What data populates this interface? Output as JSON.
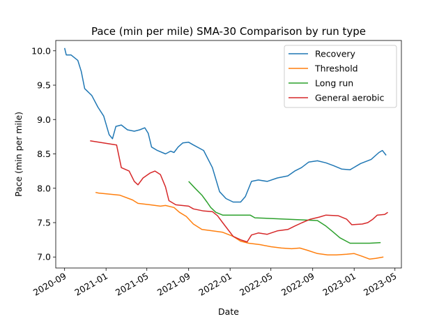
{
  "chart_data": {
    "type": "line",
    "title": "Pace (min per mile) SMA-30 Comparison by run type",
    "xlabel": "Date",
    "ylabel": "Pace (min per mile)",
    "xlim": [
      "2020-08-06",
      "2023-05-20"
    ],
    "ylim": [
      6.84,
      10.15
    ],
    "x_ticks": [
      "2020-09",
      "2021-01",
      "2021-05",
      "2021-09",
      "2022-01",
      "2022-05",
      "2022-09",
      "2023-01",
      "2023-05"
    ],
    "y_ticks": [
      "7.0",
      "7.5",
      "8.0",
      "8.5",
      "9.0",
      "9.5",
      "10.0"
    ],
    "grid": false,
    "legend": "top-right",
    "series": [
      {
        "name": "Recovery",
        "color": "#1f77b4",
        "points": [
          [
            "2020-09-01",
            10.04
          ],
          [
            "2020-09-06",
            9.94
          ],
          [
            "2020-09-20",
            9.94
          ],
          [
            "2020-10-10",
            9.86
          ],
          [
            "2020-10-20",
            9.7
          ],
          [
            "2020-10-30",
            9.45
          ],
          [
            "2020-11-20",
            9.35
          ],
          [
            "2020-12-08",
            9.18
          ],
          [
            "2020-12-25",
            9.05
          ],
          [
            "2021-01-10",
            8.78
          ],
          [
            "2021-01-20",
            8.72
          ],
          [
            "2021-01-30",
            8.9
          ],
          [
            "2021-02-15",
            8.92
          ],
          [
            "2021-03-05",
            8.85
          ],
          [
            "2021-03-25",
            8.83
          ],
          [
            "2021-04-10",
            8.85
          ],
          [
            "2021-04-25",
            8.88
          ],
          [
            "2021-05-05",
            8.8
          ],
          [
            "2021-05-15",
            8.6
          ],
          [
            "2021-06-01",
            8.55
          ],
          [
            "2021-06-25",
            8.5
          ],
          [
            "2021-07-10",
            8.54
          ],
          [
            "2021-07-20",
            8.52
          ],
          [
            "2021-08-01",
            8.6
          ],
          [
            "2021-08-15",
            8.66
          ],
          [
            "2021-09-01",
            8.67
          ],
          [
            "2021-09-15",
            8.63
          ],
          [
            "2021-10-15",
            8.55
          ],
          [
            "2021-11-10",
            8.3
          ],
          [
            "2021-12-01",
            7.95
          ],
          [
            "2021-12-20",
            7.85
          ],
          [
            "2022-01-10",
            7.8
          ],
          [
            "2022-02-01",
            7.8
          ],
          [
            "2022-02-15",
            7.88
          ],
          [
            "2022-03-05",
            8.1
          ],
          [
            "2022-03-25",
            8.12
          ],
          [
            "2022-04-20",
            8.1
          ],
          [
            "2022-05-20",
            8.15
          ],
          [
            "2022-06-20",
            8.18
          ],
          [
            "2022-07-10",
            8.25
          ],
          [
            "2022-07-30",
            8.3
          ],
          [
            "2022-08-20",
            8.38
          ],
          [
            "2022-09-15",
            8.4
          ],
          [
            "2022-10-10",
            8.37
          ],
          [
            "2022-11-01",
            8.33
          ],
          [
            "2022-11-25",
            8.28
          ],
          [
            "2022-12-20",
            8.27
          ],
          [
            "2023-01-20",
            8.36
          ],
          [
            "2023-02-20",
            8.42
          ],
          [
            "2023-03-15",
            8.52
          ],
          [
            "2023-03-25",
            8.55
          ],
          [
            "2023-04-05",
            8.48
          ]
        ]
      },
      {
        "name": "Threshold",
        "color": "#ff7f0e",
        "points": [
          [
            "2020-12-01",
            7.94
          ],
          [
            "2020-12-10",
            7.93
          ],
          [
            "2021-02-10",
            7.9
          ],
          [
            "2021-03-20",
            7.83
          ],
          [
            "2021-04-05",
            7.78
          ],
          [
            "2021-05-10",
            7.76
          ],
          [
            "2021-06-10",
            7.74
          ],
          [
            "2021-06-25",
            7.75
          ],
          [
            "2021-07-20",
            7.72
          ],
          [
            "2021-08-05",
            7.65
          ],
          [
            "2021-08-25",
            7.59
          ],
          [
            "2021-09-15",
            7.48
          ],
          [
            "2021-10-10",
            7.4
          ],
          [
            "2021-11-10",
            7.38
          ],
          [
            "2021-12-10",
            7.36
          ],
          [
            "2022-01-10",
            7.3
          ],
          [
            "2022-02-01",
            7.23
          ],
          [
            "2022-02-25",
            7.2
          ],
          [
            "2022-03-30",
            7.18
          ],
          [
            "2022-05-01",
            7.15
          ],
          [
            "2022-06-01",
            7.13
          ],
          [
            "2022-07-01",
            7.12
          ],
          [
            "2022-07-25",
            7.13
          ],
          [
            "2022-08-15",
            7.1
          ],
          [
            "2022-09-15",
            7.05
          ],
          [
            "2022-10-15",
            7.03
          ],
          [
            "2022-11-10",
            7.03
          ],
          [
            "2022-12-10",
            7.04
          ],
          [
            "2023-01-01",
            7.05
          ],
          [
            "2023-01-25",
            7.01
          ],
          [
            "2023-02-15",
            6.97
          ],
          [
            "2023-03-05",
            6.98
          ],
          [
            "2023-03-28",
            7.0
          ]
        ]
      },
      {
        "name": "Long run",
        "color": "#2ca02c",
        "points": [
          [
            "2021-09-01",
            8.1
          ],
          [
            "2021-09-20",
            8.0
          ],
          [
            "2021-10-10",
            7.9
          ],
          [
            "2021-10-25",
            7.8
          ],
          [
            "2021-11-05",
            7.72
          ],
          [
            "2021-11-20",
            7.65
          ],
          [
            "2021-12-10",
            7.61
          ],
          [
            "2022-03-01",
            7.61
          ],
          [
            "2022-03-15",
            7.57
          ],
          [
            "2022-09-15",
            7.53
          ],
          [
            "2022-10-10",
            7.45
          ],
          [
            "2022-11-01",
            7.36
          ],
          [
            "2022-11-20",
            7.28
          ],
          [
            "2022-12-20",
            7.2
          ],
          [
            "2023-02-15",
            7.2
          ],
          [
            "2023-03-20",
            7.21
          ]
        ]
      },
      {
        "name": "General aerobic",
        "color": "#d62728",
        "points": [
          [
            "2020-11-15",
            8.69
          ],
          [
            "2021-02-01",
            8.63
          ],
          [
            "2021-02-15",
            8.3
          ],
          [
            "2021-03-10",
            8.25
          ],
          [
            "2021-03-25",
            8.1
          ],
          [
            "2021-04-05",
            8.05
          ],
          [
            "2021-04-20",
            8.15
          ],
          [
            "2021-05-10",
            8.22
          ],
          [
            "2021-05-25",
            8.25
          ],
          [
            "2021-06-10",
            8.2
          ],
          [
            "2021-06-25",
            8.02
          ],
          [
            "2021-07-05",
            7.82
          ],
          [
            "2021-07-25",
            7.76
          ],
          [
            "2021-09-01",
            7.74
          ],
          [
            "2021-09-15",
            7.7
          ],
          [
            "2021-10-15",
            7.67
          ],
          [
            "2021-11-10",
            7.66
          ],
          [
            "2021-11-25",
            7.6
          ],
          [
            "2021-12-10",
            7.5
          ],
          [
            "2022-01-10",
            7.3
          ],
          [
            "2022-02-01",
            7.25
          ],
          [
            "2022-02-20",
            7.22
          ],
          [
            "2022-03-05",
            7.32
          ],
          [
            "2022-03-25",
            7.35
          ],
          [
            "2022-04-20",
            7.33
          ],
          [
            "2022-05-20",
            7.38
          ],
          [
            "2022-06-20",
            7.4
          ],
          [
            "2022-07-10",
            7.45
          ],
          [
            "2022-08-01",
            7.5
          ],
          [
            "2022-08-25",
            7.55
          ],
          [
            "2022-09-20",
            7.58
          ],
          [
            "2022-10-10",
            7.61
          ],
          [
            "2022-11-15",
            7.6
          ],
          [
            "2022-12-10",
            7.55
          ],
          [
            "2022-12-25",
            7.47
          ],
          [
            "2023-01-25",
            7.48
          ],
          [
            "2023-02-10",
            7.5
          ],
          [
            "2023-02-25",
            7.55
          ],
          [
            "2023-03-10",
            7.61
          ],
          [
            "2023-04-01",
            7.62
          ],
          [
            "2023-04-10",
            7.65
          ]
        ]
      }
    ]
  }
}
